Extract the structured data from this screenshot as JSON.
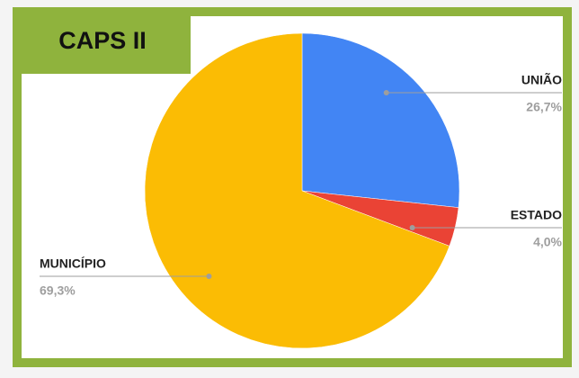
{
  "chart_data": {
    "type": "pie",
    "title": "CAPS II",
    "categories": [
      "UNIÃO",
      "ESTADO",
      "MUNICÍPIO"
    ],
    "values": [
      26.7,
      4.0,
      69.3
    ],
    "value_labels": [
      "26,7%",
      "4,0%",
      "69,3%"
    ],
    "colors": [
      "#4285f4",
      "#ea4335",
      "#fbbc04"
    ]
  }
}
